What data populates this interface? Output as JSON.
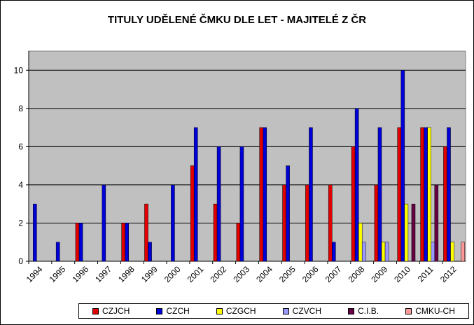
{
  "chart_data": {
    "type": "bar",
    "title": "TITULY UDĚLENÉ ČMKU DLE LET - MAJITELÉ Z ČR",
    "xlabel": "",
    "ylabel": "",
    "ylim": [
      0,
      11
    ],
    "yticks": [
      0,
      2,
      4,
      6,
      8,
      10
    ],
    "grid": true,
    "legend_position": "bottom",
    "categories": [
      "1994",
      "1995",
      "1996",
      "1997",
      "1998",
      "1999",
      "2000",
      "2001",
      "2002",
      "2003",
      "2004",
      "2005",
      "2006",
      "2007",
      "2008",
      "2009",
      "2010",
      "2011",
      "2012"
    ],
    "series": [
      {
        "name": "CZJCH",
        "color": "#e00000",
        "values": [
          0,
          0,
          2,
          0,
          2,
          3,
          0,
          5,
          3,
          2,
          7,
          4,
          4,
          4,
          6,
          4,
          7,
          7,
          6
        ]
      },
      {
        "name": "CZCH",
        "color": "#0000d8",
        "values": [
          3,
          1,
          2,
          4,
          2,
          1,
          4,
          7,
          6,
          6,
          7,
          5,
          7,
          1,
          8,
          7,
          10,
          7,
          7
        ]
      },
      {
        "name": "CZGCH",
        "color": "#ffff00",
        "values": [
          0,
          0,
          0,
          0,
          0,
          0,
          0,
          0,
          0,
          0,
          0,
          0,
          0,
          0,
          2,
          1,
          3,
          7,
          1
        ]
      },
      {
        "name": "CZVCH",
        "color": "#9999ff",
        "values": [
          0,
          0,
          0,
          0,
          0,
          0,
          0,
          0,
          0,
          0,
          0,
          0,
          0,
          0,
          1,
          1,
          0,
          1,
          0
        ]
      },
      {
        "name": "C.I.B.",
        "color": "#660044",
        "values": [
          0,
          0,
          0,
          0,
          0,
          0,
          0,
          0,
          0,
          0,
          0,
          0,
          0,
          0,
          0,
          0,
          3,
          4,
          0
        ]
      },
      {
        "name": "CMKU-CH",
        "color": "#ff9999",
        "values": [
          0,
          0,
          0,
          0,
          0,
          0,
          0,
          0,
          0,
          0,
          0,
          0,
          0,
          0,
          0,
          0,
          0,
          0,
          1
        ]
      }
    ],
    "plot_background": "#c0c0c0"
  }
}
